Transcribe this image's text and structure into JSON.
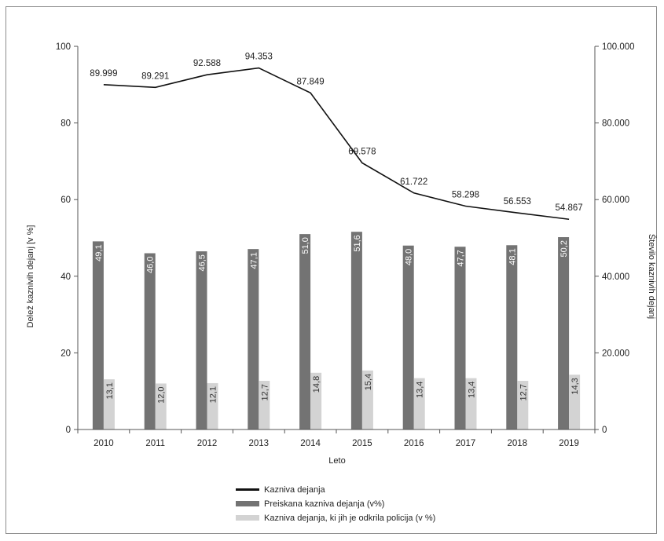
{
  "chart_data": {
    "type": "bar",
    "title": "",
    "xlabel": "Leto",
    "ylabel": "Delež kaznivih dejanj [v %]",
    "ylabel_right": "Število kaznivih dejanj",
    "ylim": [
      0,
      100
    ],
    "ylim_right": [
      0,
      100000
    ],
    "yticks_left": [
      "0",
      "20",
      "40",
      "60",
      "80",
      "100"
    ],
    "yticks_right": [
      "0",
      "20.000",
      "40.000",
      "60.000",
      "80.000",
      "100.000"
    ],
    "categories": [
      "2010",
      "2011",
      "2012",
      "2013",
      "2014",
      "2015",
      "2016",
      "2017",
      "2018",
      "2019"
    ],
    "grid": false,
    "legend_position": "bottom",
    "series": [
      {
        "name": "Kazniva dejanja",
        "kind": "line",
        "axis": "right",
        "color": "#111111",
        "values": [
          89999,
          89291,
          92588,
          94353,
          87849,
          69578,
          61722,
          58298,
          56553,
          54867
        ],
        "labels": [
          "89.999",
          "89.291",
          "92.588",
          "94.353",
          "87.849",
          "69.578",
          "61.722",
          "58.298",
          "56.553",
          "54.867"
        ]
      },
      {
        "name": "Preiskana kazniva dejanja (v%)",
        "kind": "bar",
        "axis": "left",
        "color": "#737373",
        "values": [
          49.1,
          46.0,
          46.5,
          47.1,
          51.0,
          51.6,
          48.0,
          47.7,
          48.1,
          50.2
        ],
        "labels": [
          "49,1",
          "46,0",
          "46,5",
          "47,1",
          "51,0",
          "51,6",
          "48,0",
          "47,7",
          "48,1",
          "50,2"
        ]
      },
      {
        "name": "Kazniva dejanja, ki jih je odkrila policija (v %)",
        "kind": "bar",
        "axis": "left",
        "color": "#d3d3d3",
        "values": [
          13.1,
          12.0,
          12.1,
          12.7,
          14.8,
          15.4,
          13.4,
          13.4,
          12.7,
          14.3
        ],
        "labels": [
          "13,1",
          "12,0",
          "12,1",
          "12,7",
          "14,8",
          "15,4",
          "13,4",
          "13,4",
          "12,7",
          "14,3"
        ]
      }
    ]
  }
}
